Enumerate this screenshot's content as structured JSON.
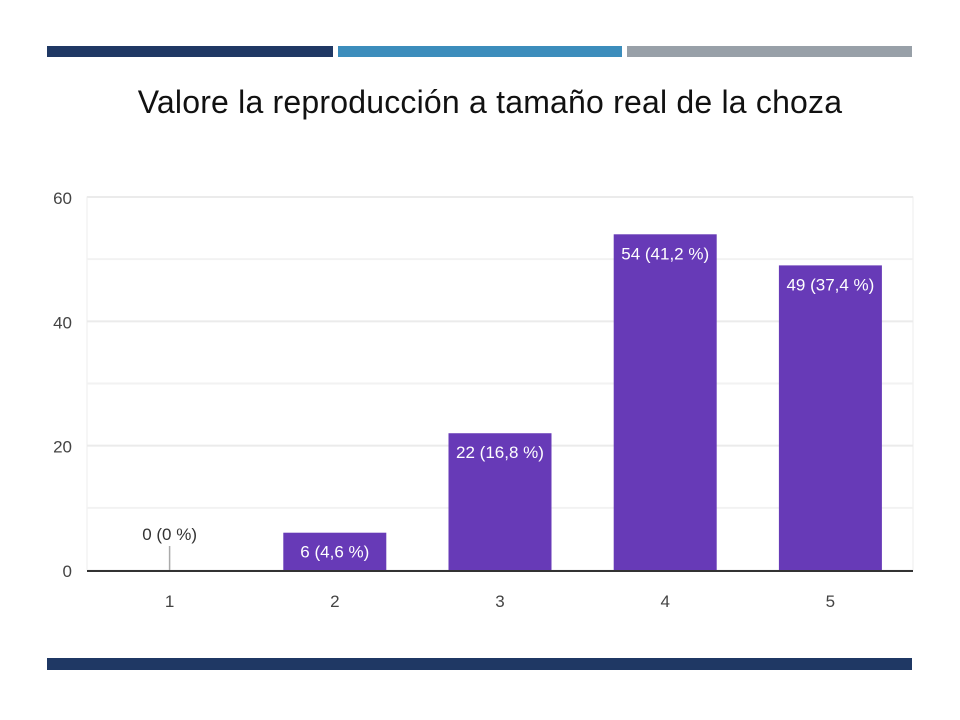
{
  "slide": {
    "title": "Valore la reproducción a tamaño real de la choza",
    "stripe_colors": [
      "#1f3864",
      "#3c8dbc",
      "#98a0a8"
    ],
    "bottom_stripe_color": "#1f3864"
  },
  "chart_data": {
    "type": "bar",
    "title": "Valore la reproducción a tamaño real de la choza",
    "categories": [
      "1",
      "2",
      "3",
      "4",
      "5"
    ],
    "values": [
      0,
      6,
      22,
      54,
      49
    ],
    "data_labels": [
      "0 (0 %)",
      "6 (4,6 %)",
      "22 (16,8 %)",
      "54 (41,2 %)",
      "49 (37,4 %)"
    ],
    "xlabel": "",
    "ylabel": "",
    "ylim": [
      0,
      60
    ],
    "yticks": [
      "0",
      "20",
      "40",
      "60"
    ],
    "minor_gridlines": [
      10,
      30,
      50
    ],
    "grid": true,
    "bar_color": "#673ab7"
  }
}
